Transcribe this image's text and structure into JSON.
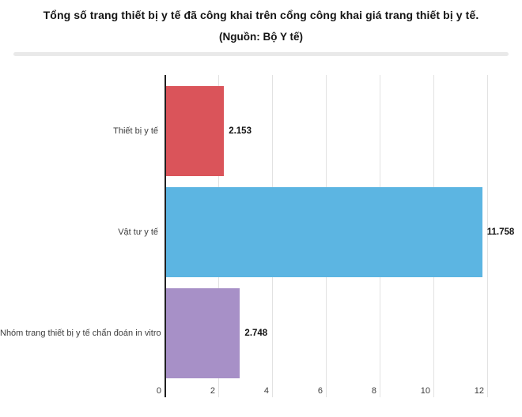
{
  "header": {
    "title": "Tổng số trang thiết bị y tế đã công khai trên cổng công khai giá trang thiết bị y tế.",
    "subtitle": "(Nguồn: Bộ Y tế)"
  },
  "colors": {
    "bar_red": "#da545a",
    "bar_blue": "#5cb5e2",
    "bar_purple": "#a790c7",
    "axis_line": "#1f1f1f",
    "gridline": "#e2e2e2",
    "divider": "#e9e9e9",
    "label_text": "#3d3d3d",
    "value_text": "#111111"
  },
  "chart_data": {
    "type": "bar",
    "orientation": "horizontal",
    "title": "Tổng số trang thiết bị y tế đã công khai trên cổng công khai giá trang thiết bị y tế.",
    "subtitle": "(Nguồn: Bộ Y tế)",
    "categories": [
      "Thiết bị y tế",
      "Vật tư y tế",
      "Nhóm trang thiết bị y tế chẩn đoán in vitro"
    ],
    "values": [
      2.153,
      11.758,
      2.748
    ],
    "value_labels": [
      "2.153",
      "11.758",
      "2.748"
    ],
    "bar_colors": [
      "#da545a",
      "#5cb5e2",
      "#a790c7"
    ],
    "x_ticks": [
      0,
      2,
      4,
      6,
      8,
      10,
      12
    ],
    "xlim": [
      0,
      12
    ],
    "xlabel": "",
    "ylabel": "",
    "grid": true,
    "legend": "none",
    "value_label_position": "outside-end"
  }
}
